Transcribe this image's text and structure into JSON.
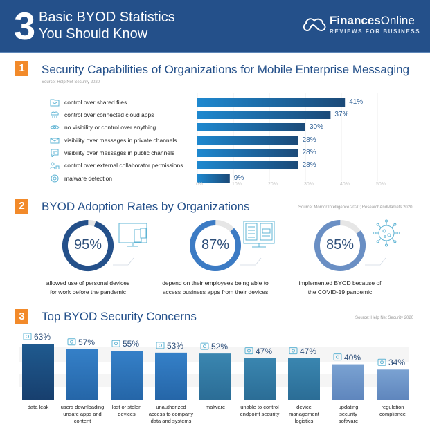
{
  "header": {
    "number": "3",
    "title_line1": "Basic BYOD Statistics",
    "title_line2": "You Should Know",
    "logo_bold": "Finances",
    "logo_regular": "Online",
    "logo_tagline": "REVIEWS FOR BUSINESS",
    "background": "#24508a"
  },
  "sections": [
    {
      "badge": "1",
      "title": "Security Capabilities of Organizations for Mobile Enterprise Messaging",
      "source": "Source: Help Net Security 2020"
    },
    {
      "badge": "2",
      "title": "BYOD Adoption Rates by Organizations",
      "source": "Source: Mordor Intelligence 2020; ResearchAndMarkets 2020"
    },
    {
      "badge": "3",
      "title": "Top BYOD Security Concerns",
      "source": "Source: Help Net Security 2020"
    }
  ],
  "colors": {
    "accent": "#f28a2a",
    "brand": "#24508a"
  },
  "chart_data": [
    {
      "type": "bar",
      "orientation": "horizontal",
      "title": "Security Capabilities of Organizations for Mobile Enterprise Messaging",
      "categories": [
        "control over shared files",
        "control over connected cloud apps",
        "no visibility or control over anything",
        "visibility over messages in private channels",
        "visibility over messages in public channels",
        "control over external collaborator permissions",
        "malware detection"
      ],
      "icons": [
        "shared-files-icon",
        "cloud-apps-icon",
        "eye-icon",
        "private-message-icon",
        "public-message-icon",
        "collaborators-icon",
        "malware-detection-icon"
      ],
      "values": [
        41,
        37,
        30,
        28,
        28,
        28,
        9
      ],
      "value_labels": [
        "41%",
        "37%",
        "30%",
        "28%",
        "28%",
        "28%",
        "9%"
      ],
      "xlim": [
        0,
        50
      ],
      "xticks": [
        "0%",
        "10%",
        "20%",
        "30%",
        "40%",
        "50%"
      ],
      "grid": true
    },
    {
      "type": "pie",
      "variant": "donut",
      "title": "BYOD Adoption Rates by Organizations",
      "items": [
        {
          "value": 95,
          "label": "95%",
          "text_line1": "allowed use of personal devices",
          "text_line2": "for work before the pandemic",
          "color": "#24508a",
          "icon": "devices-icon"
        },
        {
          "value": 87,
          "label": "87%",
          "text_line1": "depend on their employees being able to",
          "text_line2": "access business apps from their devices",
          "color": "#3c7bc4",
          "icon": "business-apps-icon"
        },
        {
          "value": 85,
          "label": "85%",
          "text_line1": "implemented BYOD because of",
          "text_line2": "the COVID-19 pandemic",
          "color": "#6a8fc4",
          "icon": "virus-icon"
        }
      ]
    },
    {
      "type": "bar",
      "orientation": "vertical",
      "title": "Top BYOD Security Concerns",
      "categories": [
        [
          "data leak"
        ],
        [
          "users downloading",
          "unsafe apps and",
          "content"
        ],
        [
          "lost or stolen",
          "devices"
        ],
        [
          "unauthorized",
          "access to company",
          "data and systems"
        ],
        [
          "malware"
        ],
        [
          "unable to control",
          "endpoint security"
        ],
        [
          "device",
          "management",
          "logistics"
        ],
        [
          "updating",
          "security",
          "software"
        ],
        [
          "regulation",
          "compliance"
        ]
      ],
      "icons": [
        "folder-eye-icon",
        "download-icon",
        "usb-drive-icon",
        "key-icon",
        "bug-icon",
        "network-icon",
        "gear-icon",
        "monitor-settings-icon",
        "scales-icon"
      ],
      "values": [
        63,
        57,
        55,
        53,
        52,
        47,
        47,
        40,
        34
      ],
      "value_labels": [
        "63%",
        "57%",
        "55%",
        "53%",
        "52%",
        "47%",
        "47%",
        "40%",
        "34%"
      ],
      "colors_top": [
        "#1f5a8f",
        "#3580c8",
        "#3580c8",
        "#3580c8",
        "#3a86b0",
        "#3a86b0",
        "#3a86b0",
        "#7aa2d2",
        "#7aa2d2"
      ],
      "colors_bottom": [
        "#173f6e",
        "#2566a8",
        "#2566a8",
        "#2566a8",
        "#2b6d96",
        "#2b6d96",
        "#2b6d96",
        "#5f86bd",
        "#5f86bd"
      ],
      "ylim": [
        0,
        70
      ]
    }
  ]
}
